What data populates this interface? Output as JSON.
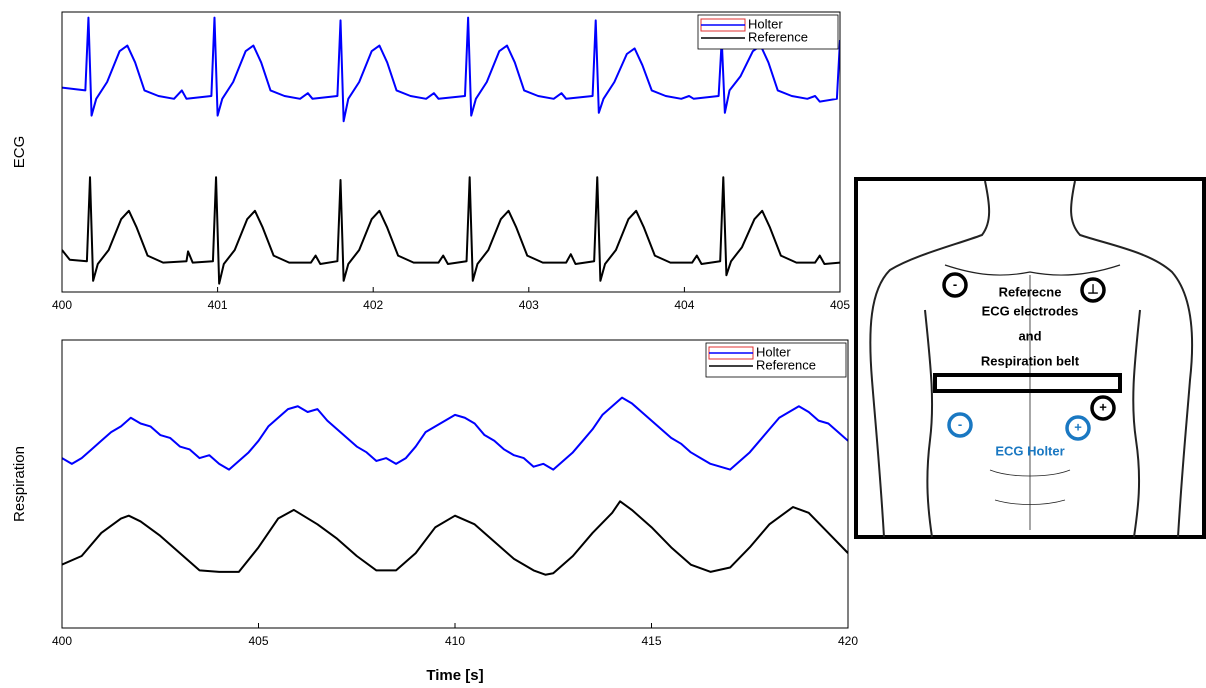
{
  "chart_data": [
    {
      "type": "line",
      "ylabel": "ECG",
      "xlim": [
        400,
        405
      ],
      "ylim": [
        0,
        10
      ],
      "xticks": [
        400,
        401,
        402,
        403,
        404,
        405
      ],
      "legend": "upper right",
      "series": [
        {
          "name": "Holter",
          "color": "#0000ff",
          "x": [
            400.0,
            400.15,
            400.17,
            400.19,
            400.22,
            400.29,
            400.37,
            400.42,
            400.47,
            400.53,
            400.62,
            400.72,
            400.77,
            400.8,
            400.96,
            400.98,
            401.0,
            401.03,
            401.1,
            401.18,
            401.23,
            401.28,
            401.34,
            401.43,
            401.53,
            401.58,
            401.61,
            401.77,
            401.79,
            401.81,
            401.84,
            401.91,
            401.99,
            402.04,
            402.09,
            402.15,
            402.24,
            402.34,
            402.39,
            402.42,
            402.59,
            402.61,
            402.63,
            402.66,
            402.73,
            402.81,
            402.86,
            402.91,
            402.97,
            403.06,
            403.16,
            403.21,
            403.24,
            403.41,
            403.43,
            403.45,
            403.48,
            403.55,
            403.63,
            403.68,
            403.73,
            403.79,
            403.88,
            403.98,
            404.03,
            404.06,
            404.22,
            404.24,
            404.26,
            404.29,
            404.36,
            404.44,
            404.49,
            404.54,
            404.6,
            404.69,
            404.79,
            404.84,
            404.87,
            404.98,
            405.0
          ],
          "values": [
            7.3,
            7.2,
            9.8,
            6.3,
            6.9,
            7.5,
            8.6,
            8.8,
            8.2,
            7.2,
            7.0,
            6.9,
            7.2,
            6.9,
            7.0,
            9.8,
            6.3,
            6.9,
            7.5,
            8.6,
            8.8,
            8.2,
            7.2,
            7.0,
            6.9,
            7.1,
            6.9,
            7.0,
            9.7,
            6.1,
            6.9,
            7.5,
            8.6,
            8.8,
            8.2,
            7.2,
            7.0,
            6.9,
            7.1,
            6.9,
            7.0,
            9.8,
            6.3,
            6.9,
            7.5,
            8.6,
            8.8,
            8.2,
            7.2,
            7.0,
            6.9,
            7.1,
            6.9,
            7.0,
            9.7,
            6.4,
            6.9,
            7.5,
            8.5,
            8.7,
            8.1,
            7.2,
            7.0,
            6.9,
            7.0,
            6.9,
            7.0,
            9.0,
            6.4,
            7.2,
            7.7,
            8.6,
            8.8,
            8.2,
            7.2,
            7.0,
            6.9,
            7.0,
            6.8,
            6.9,
            9.0
          ]
        },
        {
          "name": "Reference",
          "color": "#000000",
          "x": [
            400.0,
            400.05,
            400.16,
            400.18,
            400.2,
            400.23,
            400.3,
            400.38,
            400.43,
            400.48,
            400.55,
            400.65,
            400.8,
            400.81,
            400.84,
            400.97,
            400.99,
            401.01,
            401.04,
            401.11,
            401.19,
            401.24,
            401.29,
            401.36,
            401.46,
            401.6,
            401.63,
            401.66,
            401.77,
            401.79,
            401.81,
            401.84,
            401.91,
            401.99,
            402.04,
            402.09,
            402.16,
            402.26,
            402.42,
            402.45,
            402.48,
            402.6,
            402.62,
            402.64,
            402.67,
            402.74,
            402.82,
            402.87,
            402.92,
            402.99,
            403.09,
            403.24,
            403.27,
            403.3,
            403.42,
            403.44,
            403.46,
            403.49,
            403.56,
            403.64,
            403.69,
            403.74,
            403.81,
            403.91,
            404.05,
            404.08,
            404.11,
            404.23,
            404.25,
            404.27,
            404.3,
            404.37,
            404.45,
            404.5,
            404.55,
            404.62,
            404.72,
            404.84,
            404.87,
            404.9,
            405.0
          ],
          "values": [
            1.5,
            1.15,
            1.1,
            4.1,
            0.4,
            1.0,
            1.5,
            2.6,
            2.9,
            2.3,
            1.3,
            1.05,
            1.1,
            1.45,
            1.05,
            1.1,
            4.1,
            0.3,
            1.0,
            1.5,
            2.6,
            2.9,
            2.3,
            1.3,
            1.05,
            1.05,
            1.3,
            1.0,
            1.1,
            4.0,
            0.4,
            1.0,
            1.5,
            2.6,
            2.9,
            2.3,
            1.3,
            1.05,
            1.05,
            1.3,
            1.0,
            1.1,
            4.1,
            0.4,
            1.0,
            1.5,
            2.6,
            2.9,
            2.3,
            1.3,
            1.05,
            1.05,
            1.35,
            1.0,
            1.1,
            4.1,
            0.4,
            1.0,
            1.5,
            2.6,
            2.9,
            2.3,
            1.3,
            1.05,
            1.05,
            1.3,
            1.0,
            1.1,
            4.1,
            0.6,
            1.1,
            1.6,
            2.6,
            2.9,
            2.3,
            1.3,
            1.05,
            1.05,
            1.3,
            1.0,
            1.05
          ]
        }
      ]
    },
    {
      "type": "line",
      "ylabel": "Respiration",
      "xlabel": "Time [s]",
      "xlim": [
        400,
        420
      ],
      "ylim": [
        0,
        10
      ],
      "xticks": [
        400,
        405,
        410,
        415,
        420
      ],
      "legend": "upper right",
      "series": [
        {
          "name": "Holter",
          "color": "#0000ff",
          "x": [
            400,
            400.25,
            400.5,
            400.75,
            401,
            401.25,
            401.5,
            401.75,
            402,
            402.25,
            402.5,
            402.75,
            403,
            403.25,
            403.5,
            403.75,
            404,
            404.25,
            404.5,
            404.75,
            405,
            405.25,
            405.5,
            405.75,
            406,
            406.25,
            406.5,
            406.75,
            407,
            407.25,
            407.5,
            407.75,
            408,
            408.25,
            408.5,
            408.75,
            409,
            409.25,
            409.5,
            409.75,
            410,
            410.25,
            410.5,
            410.75,
            411,
            411.25,
            411.5,
            411.75,
            412,
            412.25,
            412.5,
            412.75,
            413,
            413.25,
            413.5,
            413.75,
            414,
            414.25,
            414.5,
            414.75,
            415,
            415.25,
            415.5,
            415.75,
            416,
            416.25,
            416.5,
            416.75,
            417,
            417.25,
            417.5,
            417.75,
            418,
            418.25,
            418.5,
            418.75,
            419,
            419.25,
            419.5,
            419.75,
            420
          ],
          "values": [
            5.9,
            5.7,
            5.9,
            6.2,
            6.5,
            6.8,
            7.0,
            7.3,
            7.1,
            7.0,
            6.7,
            6.6,
            6.3,
            6.2,
            5.9,
            6.0,
            5.7,
            5.5,
            5.8,
            6.1,
            6.5,
            7.0,
            7.3,
            7.6,
            7.7,
            7.5,
            7.6,
            7.2,
            6.9,
            6.6,
            6.3,
            6.1,
            5.8,
            5.9,
            5.7,
            5.9,
            6.3,
            6.8,
            7.0,
            7.2,
            7.4,
            7.3,
            7.1,
            6.7,
            6.5,
            6.2,
            6.0,
            5.9,
            5.6,
            5.7,
            5.5,
            5.8,
            6.1,
            6.5,
            6.9,
            7.4,
            7.7,
            8.0,
            7.8,
            7.5,
            7.2,
            6.9,
            6.6,
            6.4,
            6.1,
            5.9,
            5.7,
            5.6,
            5.5,
            5.8,
            6.1,
            6.5,
            6.9,
            7.3,
            7.5,
            7.7,
            7.5,
            7.2,
            7.1,
            6.8,
            6.5
          ]
        },
        {
          "name": "Reference",
          "color": "#000000",
          "x": [
            400,
            400.5,
            401,
            401.5,
            401.7,
            402,
            402.5,
            403,
            403.5,
            404,
            404.5,
            405,
            405.5,
            405.9,
            406.5,
            407,
            407.5,
            408,
            408.5,
            409,
            409.5,
            410,
            410.5,
            411,
            411.5,
            412,
            412.3,
            412.5,
            413,
            413.5,
            414,
            414.2,
            414.5,
            415,
            415.5,
            416,
            416.5,
            417,
            417.5,
            418,
            418.6,
            419,
            419.5,
            420
          ],
          "values": [
            2.2,
            2.5,
            3.3,
            3.8,
            3.9,
            3.7,
            3.2,
            2.6,
            2.0,
            1.95,
            1.95,
            2.8,
            3.8,
            4.1,
            3.6,
            3.1,
            2.5,
            2.0,
            2.0,
            2.6,
            3.5,
            3.9,
            3.6,
            3.0,
            2.4,
            2.0,
            1.85,
            1.9,
            2.5,
            3.3,
            4.0,
            4.4,
            4.1,
            3.5,
            2.8,
            2.2,
            1.95,
            2.1,
            2.8,
            3.6,
            4.2,
            4.0,
            3.3,
            2.6
          ]
        }
      ]
    }
  ],
  "diagram": {
    "electrode_labels": [
      "-",
      "⊥",
      "+",
      "-",
      "+"
    ],
    "texts": [
      "Referecne",
      "ECG electrodes",
      "and",
      "Respiration belt"
    ],
    "holter_label": "ECG Holter"
  }
}
